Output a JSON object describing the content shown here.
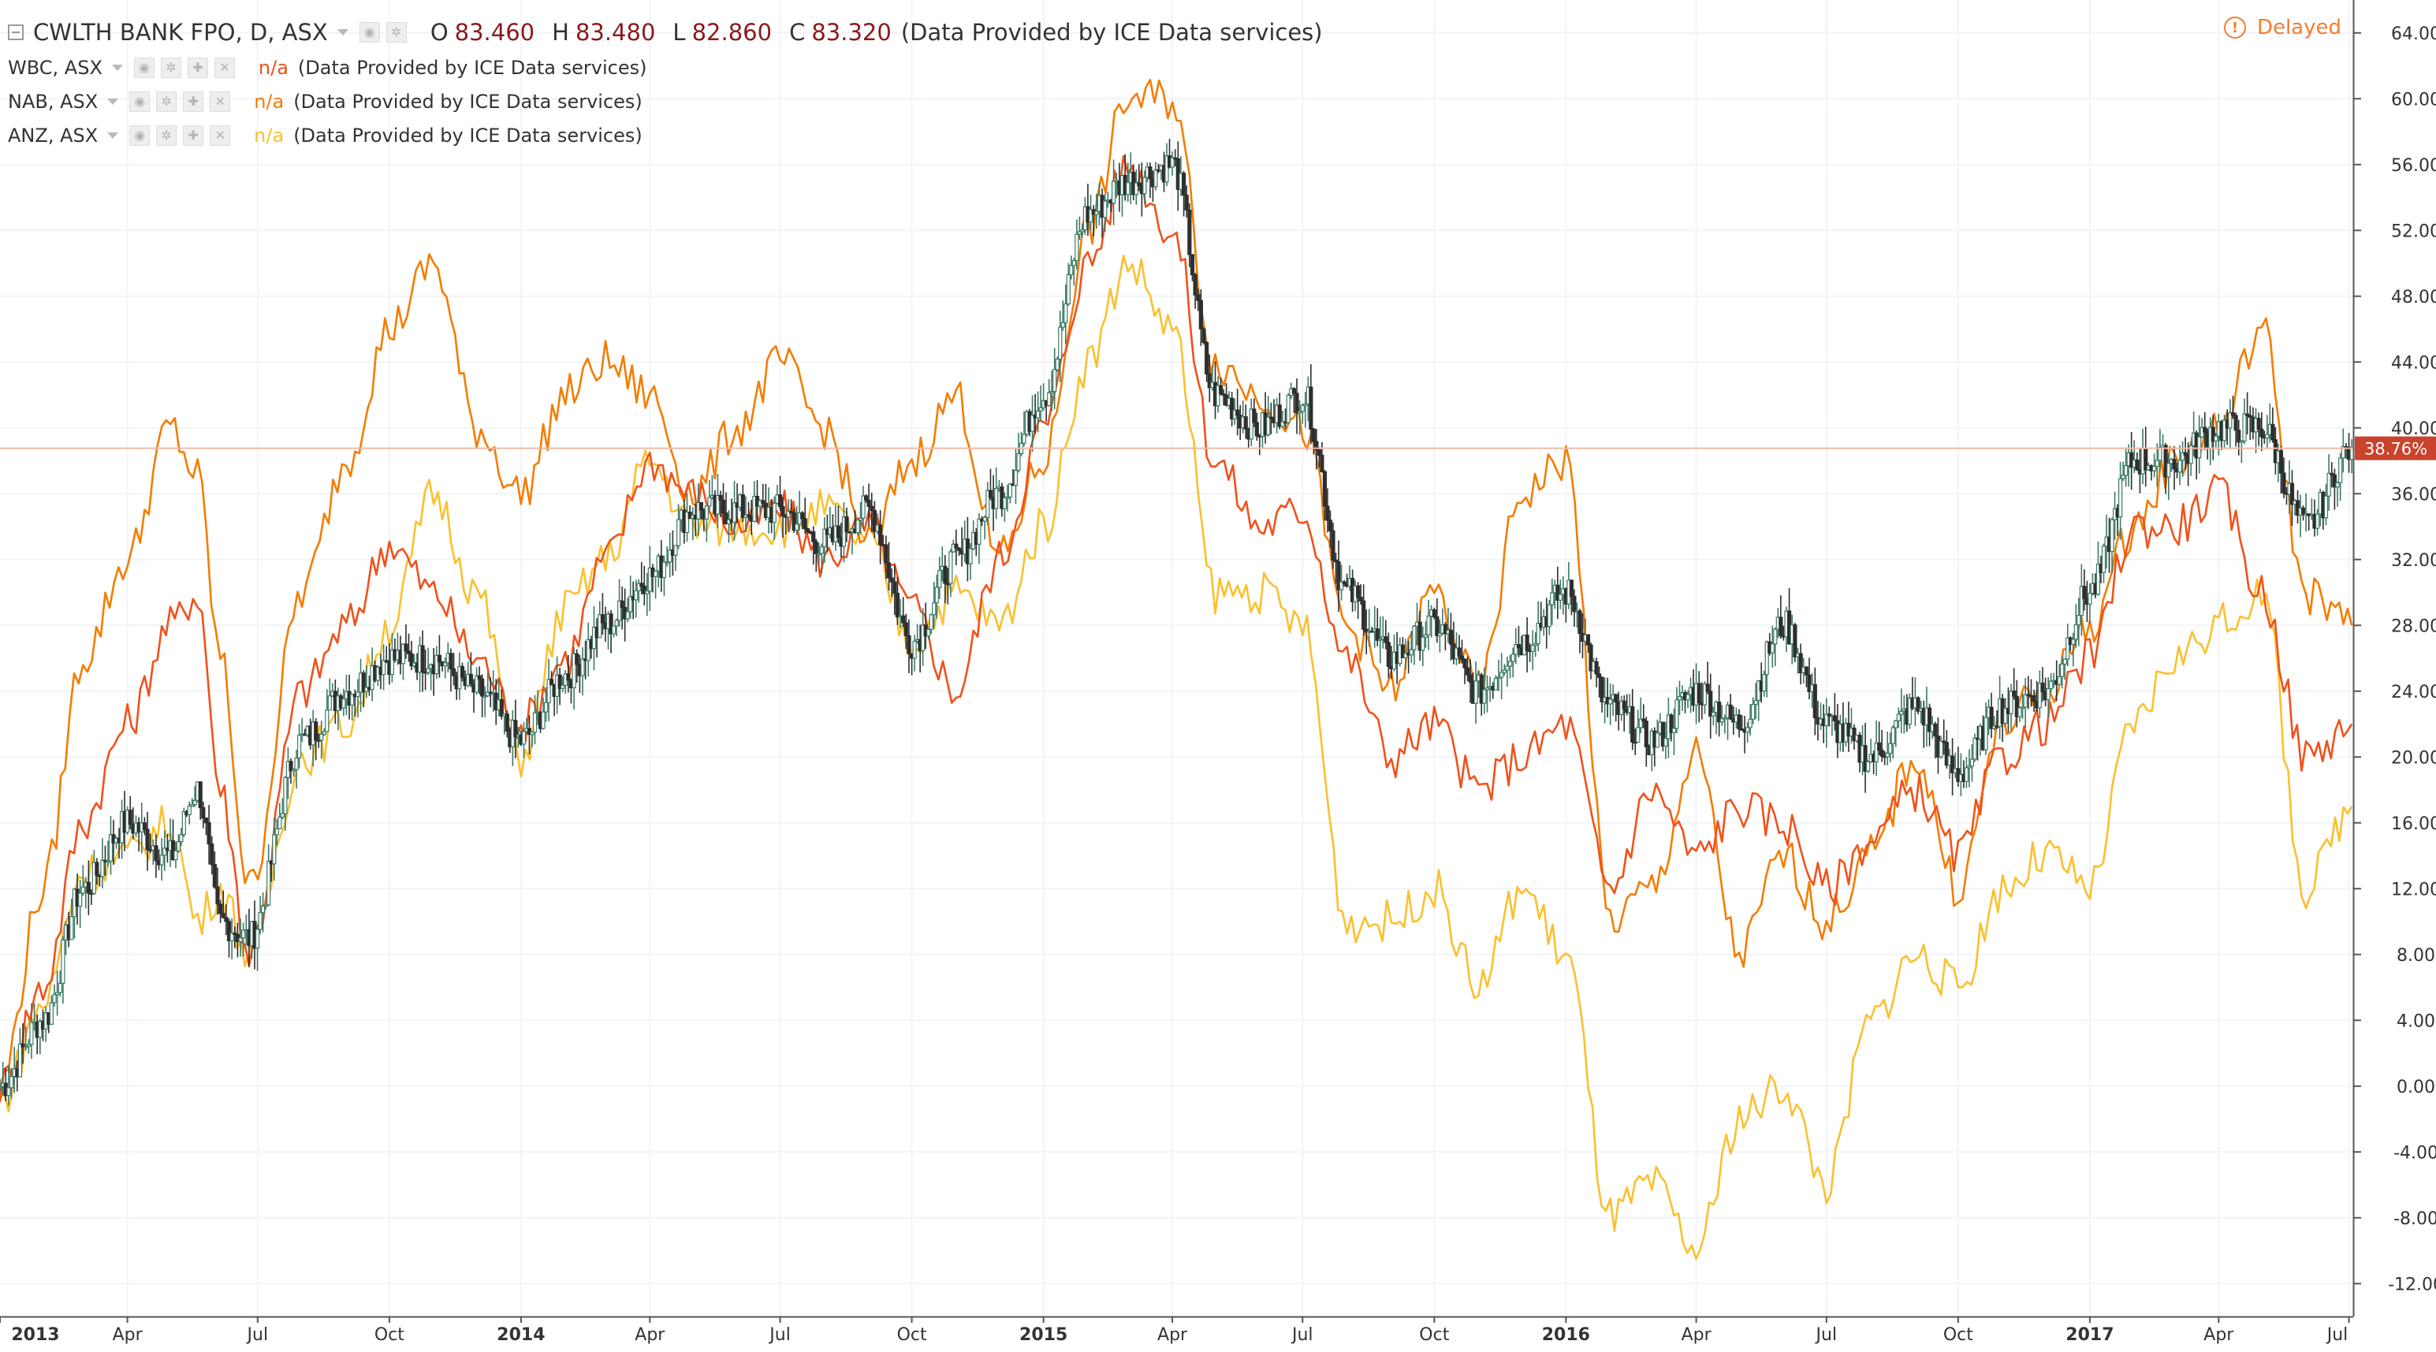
{
  "main": {
    "symbol": "CWLTH BANK FPO, D, ASX",
    "o_label": "O",
    "o_value": "83.460",
    "h_label": "H",
    "h_value": "83.480",
    "l_label": "L",
    "l_value": "82.860",
    "c_label": "C",
    "c_value": "83.320",
    "provider": "(Data Provided by ICE Data services)"
  },
  "comparisons": [
    {
      "symbol": "WBC, ASX",
      "value": "n/a",
      "provider": "(Data Provided by ICE Data services)",
      "color": "#f1511b"
    },
    {
      "symbol": "NAB, ASX",
      "value": "n/a",
      "provider": "(Data Provided by ICE Data services)",
      "color": "#f57c00"
    },
    {
      "symbol": "ANZ, ASX",
      "value": "n/a",
      "provider": "(Data Provided by ICE Data services)",
      "color": "#fbc02d"
    }
  ],
  "delayed_label": "Delayed",
  "icons": {
    "collapse": "collapse-square-icon",
    "menu": "chevron-down-icon",
    "controls": [
      "eye-icon",
      "gear-icon",
      "plus-icon",
      "close-icon"
    ],
    "delayed": "exclamation-circle-icon"
  },
  "colors": {
    "background": "#ffffff",
    "grid": "#f0f3fa",
    "axis": "#555555",
    "candle_up": "#3d7a66",
    "candle_down": "#2e2e2e",
    "price_line": "#f2b9a5",
    "price_badge": "#c9432d"
  },
  "chart_data": {
    "type": "line",
    "y_unit": "percent change",
    "ylim": [
      -14,
      66
    ],
    "yticks": [
      "64.00%",
      "60.00%",
      "56.00%",
      "52.00%",
      "48.00%",
      "44.00%",
      "40.00%",
      "36.00%",
      "32.00%",
      "28.00%",
      "24.00%",
      "20.00%",
      "16.00%",
      "12.00%",
      "8.00%",
      "4.00%",
      "0.00%",
      "-4.00%",
      "-8.00%",
      "-12.00%"
    ],
    "ytick_values": [
      64,
      60,
      56,
      52,
      48,
      44,
      40,
      36,
      32,
      28,
      24,
      20,
      16,
      12,
      8,
      4,
      0,
      -4,
      -8,
      -12
    ],
    "xlim": [
      "2013-01-02",
      "2017-07-04"
    ],
    "xticks": [
      {
        "label": "2013",
        "date": "2013-01-01",
        "bold": true
      },
      {
        "label": "Apr",
        "date": "2013-04-01"
      },
      {
        "label": "Jul",
        "date": "2013-07-01"
      },
      {
        "label": "Oct",
        "date": "2013-10-01"
      },
      {
        "label": "2014",
        "date": "2014-01-01",
        "bold": true
      },
      {
        "label": "Apr",
        "date": "2014-04-01"
      },
      {
        "label": "Jul",
        "date": "2014-07-01"
      },
      {
        "label": "Oct",
        "date": "2014-10-01"
      },
      {
        "label": "2015",
        "date": "2015-01-01",
        "bold": true
      },
      {
        "label": "Apr",
        "date": "2015-04-01"
      },
      {
        "label": "Jul",
        "date": "2015-07-01"
      },
      {
        "label": "Oct",
        "date": "2015-10-01"
      },
      {
        "label": "2016",
        "date": "2016-01-01",
        "bold": true
      },
      {
        "label": "Apr",
        "date": "2016-04-01"
      },
      {
        "label": "Jul",
        "date": "2016-07-01"
      },
      {
        "label": "Oct",
        "date": "2016-10-01"
      },
      {
        "label": "2017",
        "date": "2017-01-01",
        "bold": true
      },
      {
        "label": "Apr",
        "date": "2017-04-01"
      },
      {
        "label": "Jul",
        "date": "2017-07-01"
      }
    ],
    "current_value": 38.76,
    "current_label": "38.76%",
    "grid": true,
    "series": [
      {
        "name": "CWLTH BANK FPO, D, ASX",
        "style": "candles",
        "x": [
          "2013-01-02",
          "2013-02-01",
          "2013-03-01",
          "2013-04-01",
          "2013-05-01",
          "2013-05-20",
          "2013-06-05",
          "2013-06-25",
          "2013-08-01",
          "2013-09-01",
          "2013-10-01",
          "2013-11-01",
          "2013-12-01",
          "2014-01-01",
          "2014-02-01",
          "2014-03-01",
          "2014-04-01",
          "2014-05-01",
          "2014-06-01",
          "2014-07-01",
          "2014-08-01",
          "2014-09-01",
          "2014-10-01",
          "2014-11-01",
          "2014-12-01",
          "2015-01-01",
          "2015-02-01",
          "2015-03-01",
          "2015-04-01",
          "2015-05-01",
          "2015-06-01",
          "2015-07-01",
          "2015-08-01",
          "2015-09-01",
          "2015-10-01",
          "2015-11-01",
          "2015-12-01",
          "2016-01-01",
          "2016-02-01",
          "2016-03-01",
          "2016-04-01",
          "2016-05-01",
          "2016-06-01",
          "2016-07-01",
          "2016-08-01",
          "2016-09-01",
          "2016-10-01",
          "2016-11-01",
          "2016-12-01",
          "2017-01-01",
          "2017-02-01",
          "2017-03-01",
          "2017-04-01",
          "2017-05-01",
          "2017-06-01",
          "2017-07-03"
        ],
        "values": [
          0,
          4,
          12,
          16,
          14,
          18,
          10,
          9,
          21,
          24,
          26,
          26,
          24,
          21,
          25,
          28,
          31,
          35,
          35,
          35,
          33,
          35,
          27,
          32,
          36,
          42,
          53,
          55,
          56,
          42,
          40,
          42,
          30,
          26,
          28,
          24,
          27,
          30,
          23,
          21,
          24,
          22,
          28,
          22,
          20,
          23,
          19,
          23,
          24,
          30,
          38,
          38,
          40,
          40,
          34,
          38.76
        ]
      },
      {
        "name": "WBC, ASX",
        "style": "line",
        "x": [
          "2013-01-02",
          "2013-02-01",
          "2013-03-01",
          "2013-04-01",
          "2013-05-01",
          "2013-05-20",
          "2013-06-05",
          "2013-06-25",
          "2013-08-01",
          "2013-09-01",
          "2013-10-01",
          "2013-11-01",
          "2013-12-01",
          "2014-01-01",
          "2014-02-01",
          "2014-03-01",
          "2014-04-01",
          "2014-05-01",
          "2014-06-01",
          "2014-07-01",
          "2014-08-01",
          "2014-09-01",
          "2014-10-01",
          "2014-11-01",
          "2014-12-01",
          "2015-01-01",
          "2015-02-01",
          "2015-03-01",
          "2015-04-01",
          "2015-05-01",
          "2015-06-01",
          "2015-07-01",
          "2015-08-01",
          "2015-09-01",
          "2015-10-01",
          "2015-11-01",
          "2015-12-01",
          "2016-01-01",
          "2016-02-01",
          "2016-03-01",
          "2016-04-01",
          "2016-05-01",
          "2016-06-01",
          "2016-07-01",
          "2016-08-01",
          "2016-09-01",
          "2016-10-01",
          "2016-11-01",
          "2016-12-01",
          "2017-01-01",
          "2017-02-01",
          "2017-03-01",
          "2017-04-01",
          "2017-05-01",
          "2017-06-01",
          "2017-07-03"
        ],
        "values": [
          0,
          6,
          16,
          22,
          28,
          30,
          18,
          8,
          24,
          28,
          33,
          30,
          26,
          22,
          26,
          32,
          38,
          36,
          34,
          35,
          32,
          34,
          29,
          24,
          32,
          40,
          50,
          56,
          52,
          38,
          34,
          35,
          26,
          20,
          22,
          18,
          20,
          22,
          12,
          18,
          14,
          17,
          16,
          12,
          15,
          18,
          14,
          20,
          22,
          26,
          34,
          34,
          36,
          30,
          20,
          22
        ]
      },
      {
        "name": "NAB, ASX",
        "style": "line",
        "x": [
          "2013-01-02",
          "2013-02-01",
          "2013-03-01",
          "2013-04-01",
          "2013-05-01",
          "2013-05-20",
          "2013-06-05",
          "2013-06-25",
          "2013-08-01",
          "2013-09-01",
          "2013-10-01",
          "2013-11-01",
          "2013-12-01",
          "2014-01-01",
          "2014-02-01",
          "2014-03-01",
          "2014-04-01",
          "2014-05-01",
          "2014-06-01",
          "2014-07-01",
          "2014-08-01",
          "2014-09-01",
          "2014-10-01",
          "2014-11-01",
          "2014-12-01",
          "2015-01-01",
          "2015-02-01",
          "2015-03-01",
          "2015-04-01",
          "2015-05-01",
          "2015-06-01",
          "2015-07-01",
          "2015-08-01",
          "2015-09-01",
          "2015-10-01",
          "2015-11-01",
          "2015-12-01",
          "2016-01-01",
          "2016-02-01",
          "2016-03-01",
          "2016-04-01",
          "2016-05-01",
          "2016-06-01",
          "2016-07-01",
          "2016-08-01",
          "2016-09-01",
          "2016-10-01",
          "2016-11-01",
          "2016-12-01",
          "2017-01-01",
          "2017-02-01",
          "2017-03-01",
          "2017-04-01",
          "2017-05-01",
          "2017-06-01",
          "2017-07-03"
        ],
        "values": [
          0,
          12,
          26,
          32,
          40,
          37,
          26,
          12,
          30,
          38,
          46,
          50,
          40,
          36,
          42,
          44,
          42,
          36,
          40,
          44,
          40,
          33,
          38,
          42,
          32,
          38,
          52,
          60,
          60,
          44,
          42,
          40,
          28,
          24,
          30,
          24,
          36,
          38,
          10,
          12,
          20,
          8,
          14,
          10,
          14,
          20,
          12,
          22,
          24,
          28,
          34,
          38,
          40,
          46,
          30,
          28
        ]
      },
      {
        "name": "ANZ, ASX",
        "style": "line",
        "x": [
          "2013-01-02",
          "2013-02-01",
          "2013-03-01",
          "2013-04-01",
          "2013-05-01",
          "2013-05-20",
          "2013-06-05",
          "2013-06-25",
          "2013-08-01",
          "2013-09-01",
          "2013-10-01",
          "2013-11-01",
          "2013-12-01",
          "2014-01-01",
          "2014-02-01",
          "2014-03-01",
          "2014-04-01",
          "2014-05-01",
          "2014-06-01",
          "2014-07-01",
          "2014-08-01",
          "2014-09-01",
          "2014-10-01",
          "2014-11-01",
          "2014-12-01",
          "2015-01-01",
          "2015-02-01",
          "2015-03-01",
          "2015-04-01",
          "2015-05-01",
          "2015-06-01",
          "2015-07-01",
          "2015-08-01",
          "2015-09-01",
          "2015-10-01",
          "2015-11-01",
          "2015-12-01",
          "2016-01-01",
          "2016-02-01",
          "2016-03-01",
          "2016-04-01",
          "2016-05-01",
          "2016-06-01",
          "2016-07-01",
          "2016-08-01",
          "2016-09-01",
          "2016-10-01",
          "2016-11-01",
          "2016-12-01",
          "2017-01-01",
          "2017-02-01",
          "2017-03-01",
          "2017-04-01",
          "2017-05-01",
          "2017-06-01",
          "2017-07-03"
        ],
        "values": [
          -1,
          5,
          13,
          14,
          16,
          10,
          12,
          8,
          20,
          22,
          28,
          36,
          30,
          20,
          29,
          32,
          38,
          34,
          34,
          34,
          35,
          33,
          27,
          30,
          28,
          34,
          44,
          50,
          46,
          30,
          30,
          28,
          10,
          10,
          12,
          6,
          12,
          8,
          -8,
          -6,
          -10,
          -2,
          0,
          -6,
          4,
          8,
          6,
          12,
          14,
          12,
          22,
          26,
          28,
          30,
          12,
          17
        ]
      }
    ]
  }
}
